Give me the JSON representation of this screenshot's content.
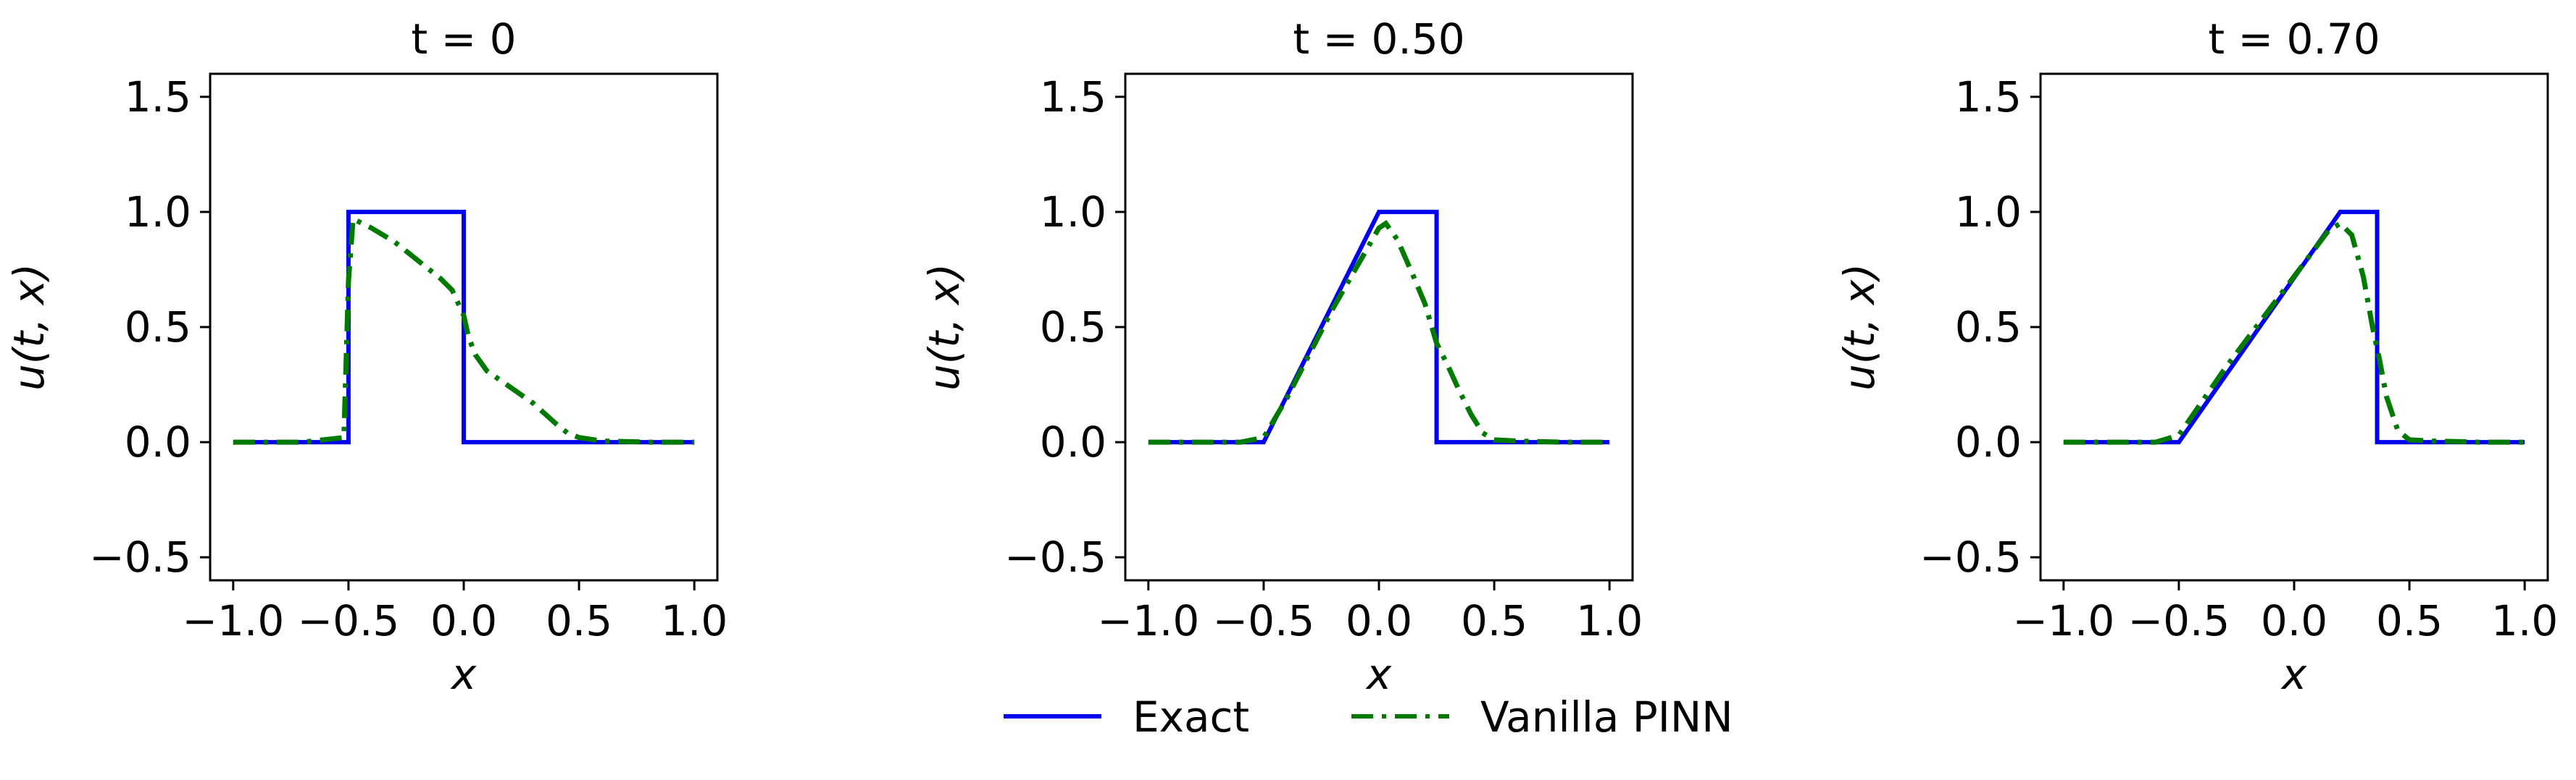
{
  "colors": {
    "exact": "#0000ee",
    "pinn": "#007a00",
    "axis": "#000000"
  },
  "legend": {
    "placement": "bottom-center",
    "entries": [
      {
        "label": "Exact",
        "style": "solid",
        "color": "#0000ee"
      },
      {
        "label": "Vanilla PINN",
        "style": "dash-dot",
        "color": "#007a00"
      }
    ]
  },
  "chart_data": [
    {
      "type": "line",
      "title": "t = 0",
      "xlabel": "x",
      "ylabel": "u(t, x)",
      "xlim": [
        -1.1,
        1.1
      ],
      "ylim": [
        -0.6,
        1.6
      ],
      "xticks": [
        -1.0,
        -0.5,
        0.0,
        0.5,
        1.0
      ],
      "xtick_labels": [
        "−1.0",
        "−0.5",
        "0.0",
        "0.5",
        "1.0"
      ],
      "yticks": [
        -0.5,
        0.0,
        0.5,
        1.0,
        1.5
      ],
      "ytick_labels": [
        "−0.5",
        "0.0",
        "0.5",
        "1.0",
        "1.5"
      ],
      "grid": false,
      "series": [
        {
          "name": "Exact",
          "x": [
            -1.0,
            -0.5,
            -0.5,
            0.0,
            0.0,
            1.0
          ],
          "y": [
            0,
            0,
            1,
            1,
            0,
            0
          ]
        },
        {
          "name": "Vanilla PINN",
          "x": [
            -1.0,
            -0.7,
            -0.52,
            -0.5,
            -0.48,
            -0.4,
            -0.3,
            -0.2,
            -0.1,
            -0.05,
            0.0,
            0.02,
            0.05,
            0.1,
            0.2,
            0.3,
            0.4,
            0.45,
            0.5,
            0.6,
            0.8,
            1.0
          ],
          "y": [
            0,
            0,
            0.02,
            0.7,
            0.97,
            0.93,
            0.87,
            0.79,
            0.71,
            0.66,
            0.55,
            0.46,
            0.38,
            0.31,
            0.24,
            0.17,
            0.08,
            0.04,
            0.02,
            0.005,
            0,
            0
          ]
        }
      ]
    },
    {
      "type": "line",
      "title": "t = 0.50",
      "xlabel": "x",
      "ylabel": "u(t, x)",
      "xlim": [
        -1.1,
        1.1
      ],
      "ylim": [
        -0.6,
        1.6
      ],
      "xticks": [
        -1.0,
        -0.5,
        0.0,
        0.5,
        1.0
      ],
      "xtick_labels": [
        "−1.0",
        "−0.5",
        "0.0",
        "0.5",
        "1.0"
      ],
      "yticks": [
        -0.5,
        0.0,
        0.5,
        1.0,
        1.5
      ],
      "ytick_labels": [
        "−0.5",
        "0.0",
        "0.5",
        "1.0",
        "1.5"
      ],
      "grid": false,
      "series": [
        {
          "name": "Exact",
          "x": [
            -1.0,
            -0.5,
            0.0,
            0.25,
            0.25,
            1.0
          ],
          "y": [
            0,
            0,
            1,
            1,
            0,
            0
          ]
        },
        {
          "name": "Vanilla PINN",
          "x": [
            -1.0,
            -0.6,
            -0.5,
            -0.4,
            -0.2,
            0.0,
            0.03,
            0.08,
            0.15,
            0.2,
            0.25,
            0.3,
            0.35,
            0.4,
            0.45,
            0.5,
            0.6,
            0.8,
            1.0
          ],
          "y": [
            0,
            0,
            0.02,
            0.19,
            0.58,
            0.93,
            0.95,
            0.88,
            0.72,
            0.6,
            0.43,
            0.33,
            0.22,
            0.12,
            0.04,
            0.01,
            0.005,
            0,
            0
          ]
        }
      ]
    },
    {
      "type": "line",
      "title": "t = 0.70",
      "xlabel": "x",
      "ylabel": "u(t, x)",
      "xlim": [
        -1.1,
        1.1
      ],
      "ylim": [
        -0.6,
        1.6
      ],
      "xticks": [
        -1.0,
        -0.5,
        0.0,
        0.5,
        1.0
      ],
      "xtick_labels": [
        "−1.0",
        "−0.5",
        "0.0",
        "0.5",
        "1.0"
      ],
      "yticks": [
        -0.5,
        0.0,
        0.5,
        1.0,
        1.5
      ],
      "ytick_labels": [
        "−0.5",
        "0.0",
        "0.5",
        "1.0",
        "1.5"
      ],
      "grid": false,
      "series": [
        {
          "name": "Exact",
          "x": [
            -1.0,
            -0.5,
            0.2,
            0.36,
            0.36,
            1.0
          ],
          "y": [
            0,
            0,
            1,
            1,
            0,
            0
          ]
        },
        {
          "name": "Vanilla PINN",
          "x": [
            -1.0,
            -0.6,
            -0.5,
            -0.3,
            0.0,
            0.15,
            0.2,
            0.25,
            0.3,
            0.34,
            0.37,
            0.4,
            0.45,
            0.5,
            0.6,
            0.8,
            1.0
          ],
          "y": [
            0,
            0,
            0.03,
            0.32,
            0.72,
            0.92,
            0.95,
            0.9,
            0.72,
            0.5,
            0.36,
            0.2,
            0.05,
            0.01,
            0.005,
            0,
            0
          ]
        }
      ]
    }
  ]
}
